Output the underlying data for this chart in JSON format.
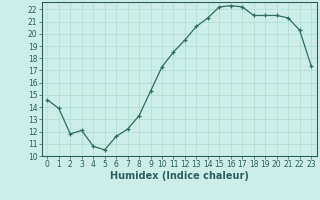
{
  "x": [
    0,
    1,
    2,
    3,
    4,
    5,
    6,
    7,
    8,
    9,
    10,
    11,
    12,
    13,
    14,
    15,
    16,
    17,
    18,
    19,
    20,
    21,
    22,
    23
  ],
  "y": [
    14.6,
    13.9,
    11.8,
    12.1,
    10.8,
    10.5,
    11.6,
    12.2,
    13.3,
    15.3,
    17.3,
    18.5,
    19.5,
    20.6,
    21.3,
    22.2,
    22.3,
    22.2,
    21.5,
    21.5,
    21.5,
    21.3,
    20.3,
    17.4
  ],
  "line_color": "#2e6e5e",
  "marker": "+",
  "marker_color": "#2e6e5e",
  "bg_color": "#cceee8",
  "grid_color": "#aaddcc",
  "xlabel": "Humidex (Indice chaleur)",
  "xlim": [
    -0.5,
    23.5
  ],
  "ylim": [
    10,
    22.6
  ],
  "yticks": [
    10,
    11,
    12,
    13,
    14,
    15,
    16,
    17,
    18,
    19,
    20,
    21,
    22
  ],
  "xticks": [
    0,
    1,
    2,
    3,
    4,
    5,
    6,
    7,
    8,
    9,
    10,
    11,
    12,
    13,
    14,
    15,
    16,
    17,
    18,
    19,
    20,
    21,
    22,
    23
  ],
  "tick_fontsize": 5.5,
  "label_fontsize": 7
}
